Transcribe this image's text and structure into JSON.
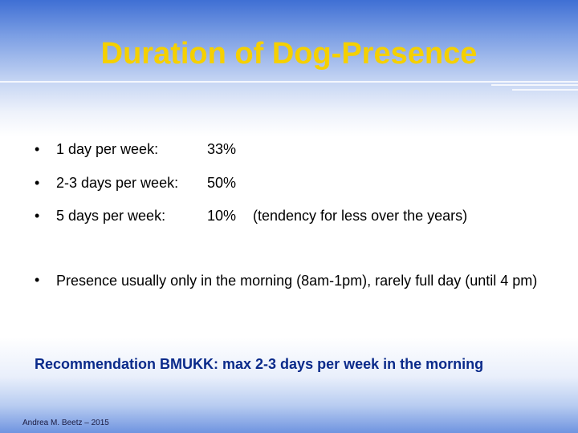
{
  "title": "Duration of Dog-Presence",
  "bullets": [
    {
      "label": "1 day per week:",
      "value": "33%",
      "note": ""
    },
    {
      "label": "2-3 days per week:",
      "value": "50%",
      "note": ""
    },
    {
      "label": "5 days per week:",
      "value": "10%",
      "note": "(tendency for less over the years)"
    }
  ],
  "bullet_symbol": "•",
  "presence_text": "Presence usually only in the morning (8am-1pm), rarely full day (until 4 pm)",
  "recommendation": "Recommendation BMUKK: max 2-3 days per week in the morning",
  "footer": "Andrea M. Beetz – 2015",
  "colors": {
    "title": "#f5d000",
    "recommendation": "#0a2a8a",
    "background_top": "#3f6fd4"
  }
}
